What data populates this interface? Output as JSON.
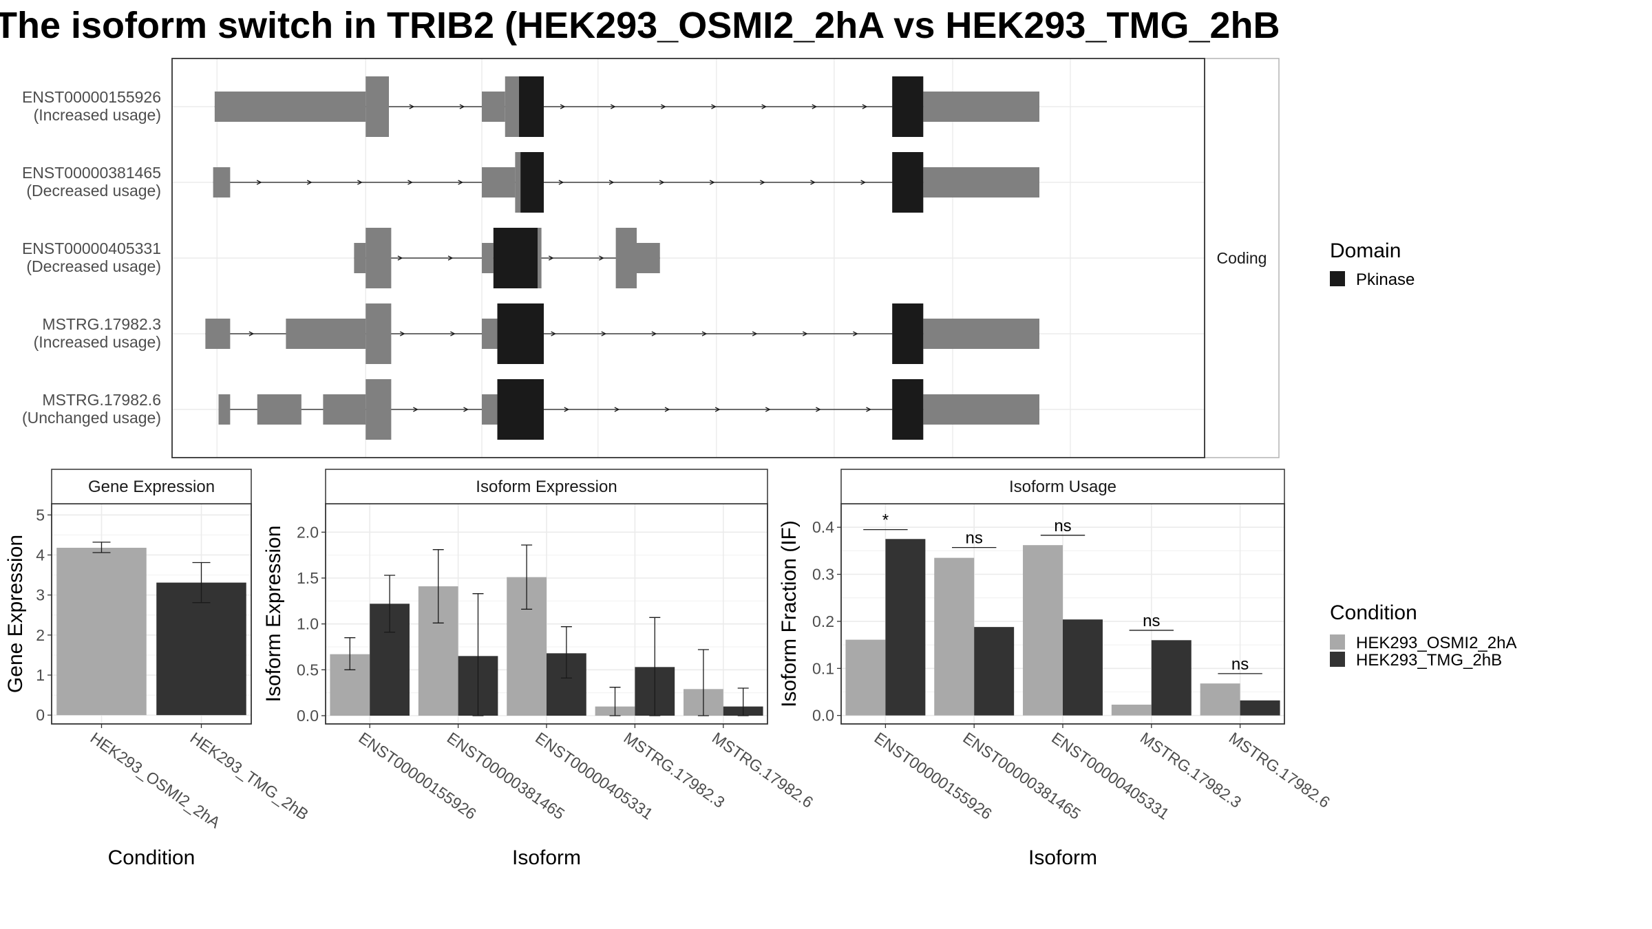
{
  "title": "The isoform switch in TRIB2 (HEK293_OSMI2_2hA vs HEK293_TMG_2hB",
  "colors": {
    "cond_a": "#a9a9a9",
    "cond_b": "#333333",
    "domain": "#1a1a1a",
    "exon": "#808080"
  },
  "chart_data": [
    {
      "type": "gene-structure",
      "strip_label": "Coding",
      "legend_title": "Domain",
      "legend_items": [
        {
          "name": "Pkinase",
          "color": "#1a1a1a"
        }
      ],
      "transcripts": [
        {
          "id": "ENST00000155926",
          "usage": "(Increased usage)",
          "noncoding": [
            [
              0.055,
              0.25
            ],
            [
              0.4,
              0.43
            ],
            [
              0.97,
              1.12
            ]
          ],
          "cds": [
            [
              0.25,
              0.28
            ],
            [
              0.43,
              0.48
            ],
            [
              0.93,
              0.97
            ]
          ],
          "domain": [
            [
              0.448,
              0.48
            ],
            [
              0.93,
              0.97
            ]
          ]
        },
        {
          "id": "ENST00000381465",
          "usage": "(Decreased usage)",
          "noncoding": [
            [
              0.053,
              0.075
            ],
            [
              0.4,
              0.443
            ],
            [
              0.97,
              1.12
            ]
          ],
          "cds": [
            [
              0.443,
              0.48
            ],
            [
              0.93,
              0.97
            ]
          ],
          "domain": [
            [
              0.45,
              0.48
            ],
            [
              0.93,
              0.97
            ]
          ]
        },
        {
          "id": "ENST00000405331",
          "usage": "(Decreased usage)",
          "noncoding": [
            [
              0.235,
              0.25
            ],
            [
              0.4,
              0.415
            ],
            [
              0.6,
              0.63
            ]
          ],
          "cds": [
            [
              0.25,
              0.283
            ],
            [
              0.415,
              0.477
            ],
            [
              0.573,
              0.6
            ]
          ],
          "domain": [
            [
              0.415,
              0.472
            ]
          ]
        },
        {
          "id": "MSTRG.17982.3",
          "usage": "(Increased usage)",
          "noncoding": [
            [
              0.043,
              0.075
            ],
            [
              0.147,
              0.25
            ],
            [
              0.4,
              0.42
            ],
            [
              0.97,
              1.12
            ]
          ],
          "cds": [
            [
              0.25,
              0.283
            ],
            [
              0.42,
              0.48
            ],
            [
              0.93,
              0.97
            ]
          ],
          "domain": [
            [
              0.42,
              0.48
            ],
            [
              0.93,
              0.97
            ]
          ]
        },
        {
          "id": "MSTRG.17982.6",
          "usage": "(Unchanged usage)",
          "noncoding": [
            [
              0.06,
              0.075
            ],
            [
              0.11,
              0.167
            ],
            [
              0.195,
              0.25
            ],
            [
              0.4,
              0.42
            ],
            [
              0.97,
              1.12
            ]
          ],
          "cds": [
            [
              0.25,
              0.283
            ],
            [
              0.42,
              0.48
            ],
            [
              0.93,
              0.97
            ]
          ],
          "domain": [
            [
              0.42,
              0.48
            ],
            [
              0.93,
              0.97
            ]
          ]
        }
      ]
    },
    {
      "type": "bar",
      "title": "Gene Expression",
      "xlabel": "Condition",
      "ylabel": "Gene Expression",
      "ylim": [
        -0.22,
        5.28
      ],
      "yticks": [
        0,
        1,
        2,
        3,
        4,
        5
      ],
      "categories": [
        "HEK293_OSMI2_2hA",
        "HEK293_TMG_2hB"
      ],
      "values": [
        4.18,
        3.31
      ],
      "errors": [
        [
          4.06,
          4.32
        ],
        [
          2.81,
          3.81
        ]
      ],
      "grid": true
    },
    {
      "type": "bar",
      "title": "Isoform Expression",
      "xlabel": "Isoform",
      "ylabel": "Isoform Expression",
      "ylim": [
        -0.09,
        2.31
      ],
      "yticks": [
        0.0,
        0.5,
        1.0,
        1.5,
        2.0
      ],
      "categories": [
        "ENST00000155926",
        "ENST00000381465",
        "ENST00000405331",
        "MSTRG.17982.3",
        "MSTRG.17982.6"
      ],
      "series": [
        {
          "name": "HEK293_OSMI2_2hA",
          "values": [
            0.67,
            1.41,
            1.51,
            0.1,
            0.29
          ],
          "errors": [
            [
              0.5,
              0.85
            ],
            [
              1.01,
              1.81
            ],
            [
              1.16,
              1.86
            ],
            [
              0.0,
              0.31
            ],
            [
              0.0,
              0.72
            ]
          ]
        },
        {
          "name": "HEK293_TMG_2hB",
          "values": [
            1.22,
            0.65,
            0.68,
            0.53,
            0.1
          ],
          "errors": [
            [
              0.91,
              1.53
            ],
            [
              0.0,
              1.33
            ],
            [
              0.41,
              0.97
            ],
            [
              0.0,
              1.07
            ],
            [
              0.0,
              0.3
            ]
          ]
        }
      ],
      "grid": true
    },
    {
      "type": "bar",
      "title": "Isoform Usage",
      "xlabel": "Isoform",
      "ylabel": "Isoform Fraction (IF)",
      "ylim": [
        -0.018,
        0.45
      ],
      "yticks": [
        0.0,
        0.1,
        0.2,
        0.3,
        0.4
      ],
      "categories": [
        "ENST00000155926",
        "ENST00000381465",
        "ENST00000405331",
        "MSTRG.17982.3",
        "MSTRG.17982.6"
      ],
      "series": [
        {
          "name": "HEK293_OSMI2_2hA",
          "values": [
            0.161,
            0.335,
            0.362,
            0.023,
            0.068
          ]
        },
        {
          "name": "HEK293_TMG_2hB",
          "values": [
            0.375,
            0.188,
            0.204,
            0.16,
            0.032
          ]
        }
      ],
      "significance": [
        {
          "label": "*",
          "y": 0.395
        },
        {
          "label": "ns",
          "y": 0.357
        },
        {
          "label": "ns",
          "y": 0.383
        },
        {
          "label": "ns",
          "y": 0.181
        },
        {
          "label": "ns",
          "y": 0.089
        }
      ],
      "grid": true,
      "legend_title": "Condition",
      "legend_placement": "right"
    }
  ]
}
